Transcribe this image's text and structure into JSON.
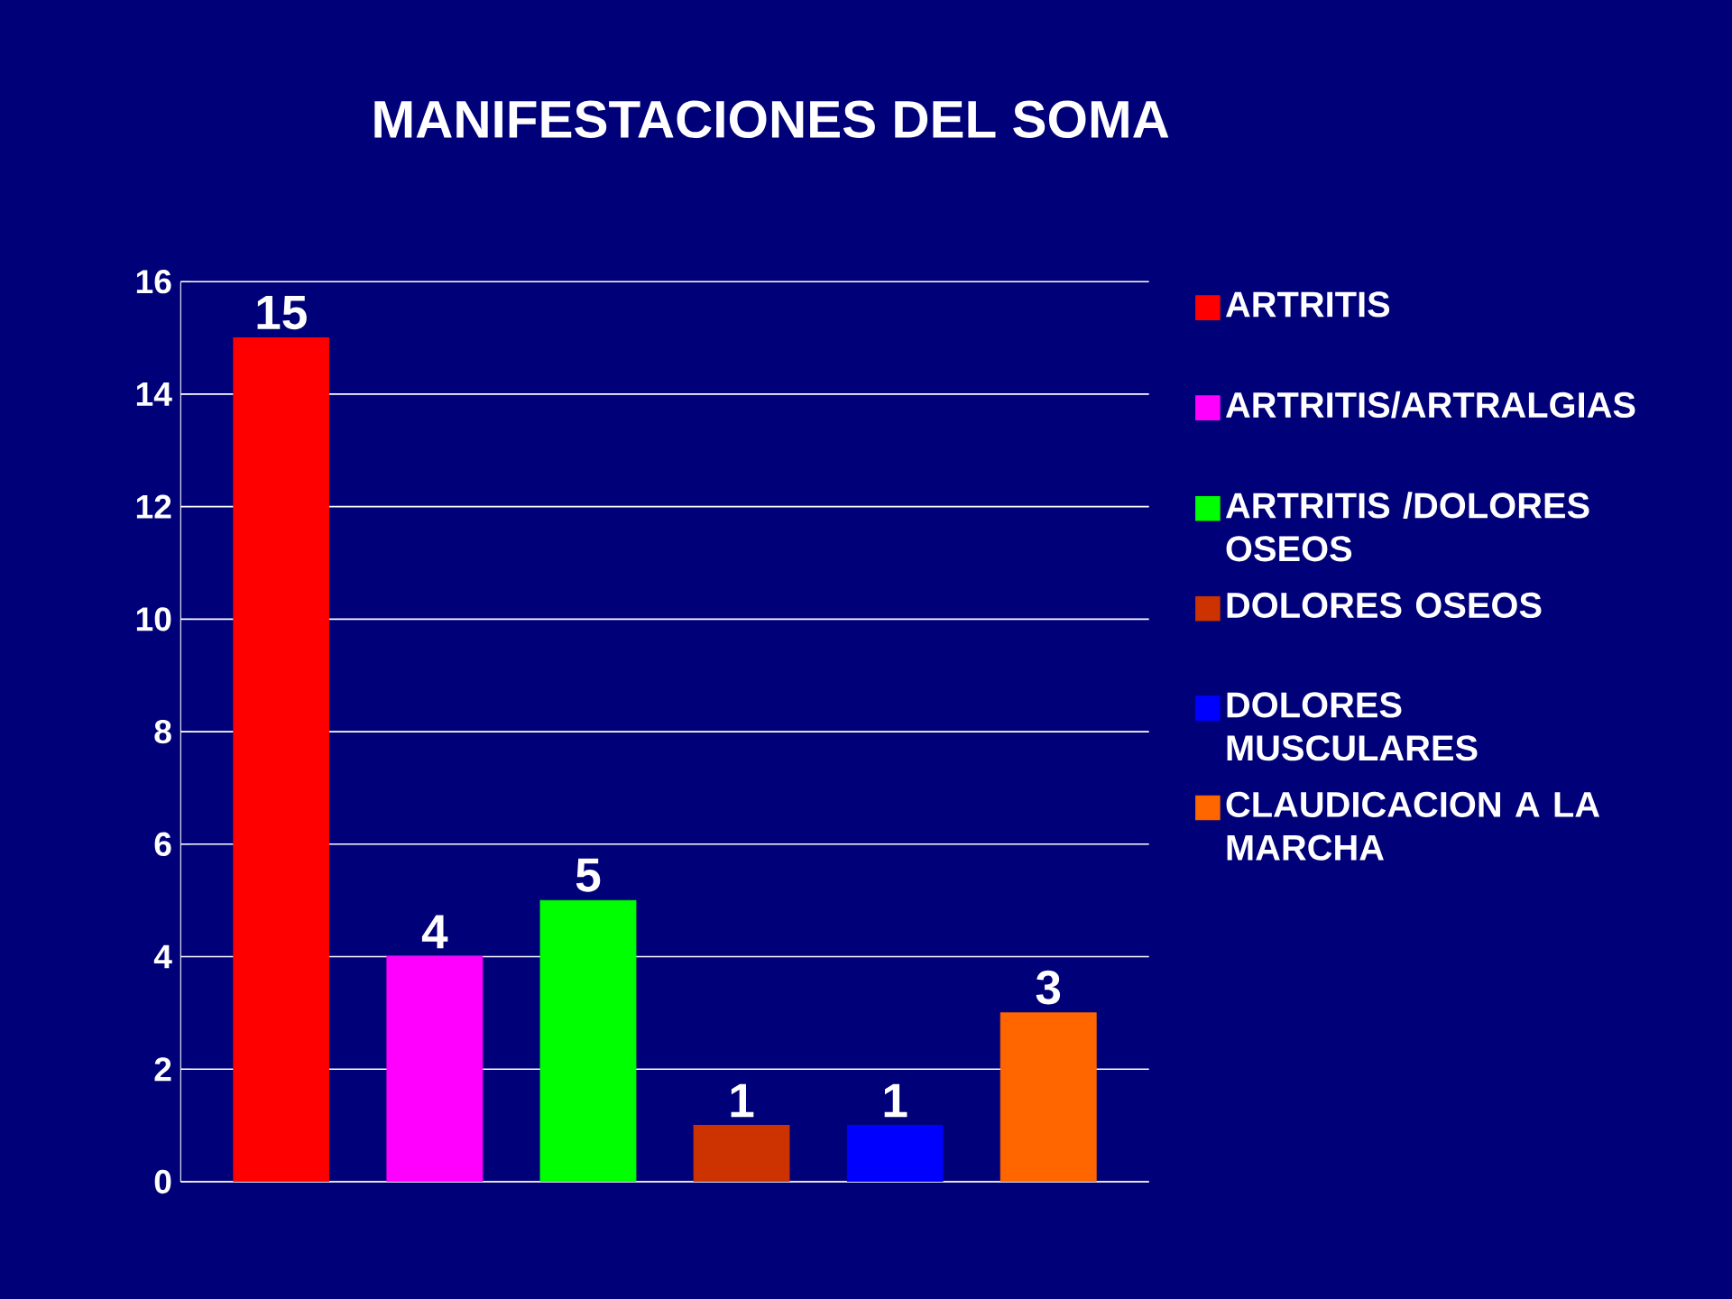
{
  "chart_data": {
    "type": "bar",
    "title": "MANIFESTACIONES DEL SOMA",
    "categories": [
      null
    ],
    "series": [
      {
        "name": "ARTRITIS",
        "color": "#ff0000",
        "values": [
          15
        ]
      },
      {
        "name": "ARTRITIS/ARTRALGIAS",
        "color": "#ff00ff",
        "values": [
          4
        ]
      },
      {
        "name": "ARTRITIS /DOLORES OSEOS",
        "color": "#00ff00",
        "values": [
          5
        ]
      },
      {
        "name": "DOLORES OSEOS",
        "color": "#cc3300",
        "values": [
          1
        ]
      },
      {
        "name": "DOLORES MUSCULARES",
        "color": "#0000ff",
        "values": [
          1
        ]
      },
      {
        "name": "CLAUDICACION A LA MARCHA",
        "color": "#ff6600",
        "values": [
          3
        ]
      }
    ],
    "ylim": [
      0,
      16
    ],
    "yticks": [
      0,
      2,
      4,
      6,
      8,
      10,
      12,
      14,
      16
    ],
    "grid": "y",
    "legend": "right",
    "data_labels": true
  }
}
